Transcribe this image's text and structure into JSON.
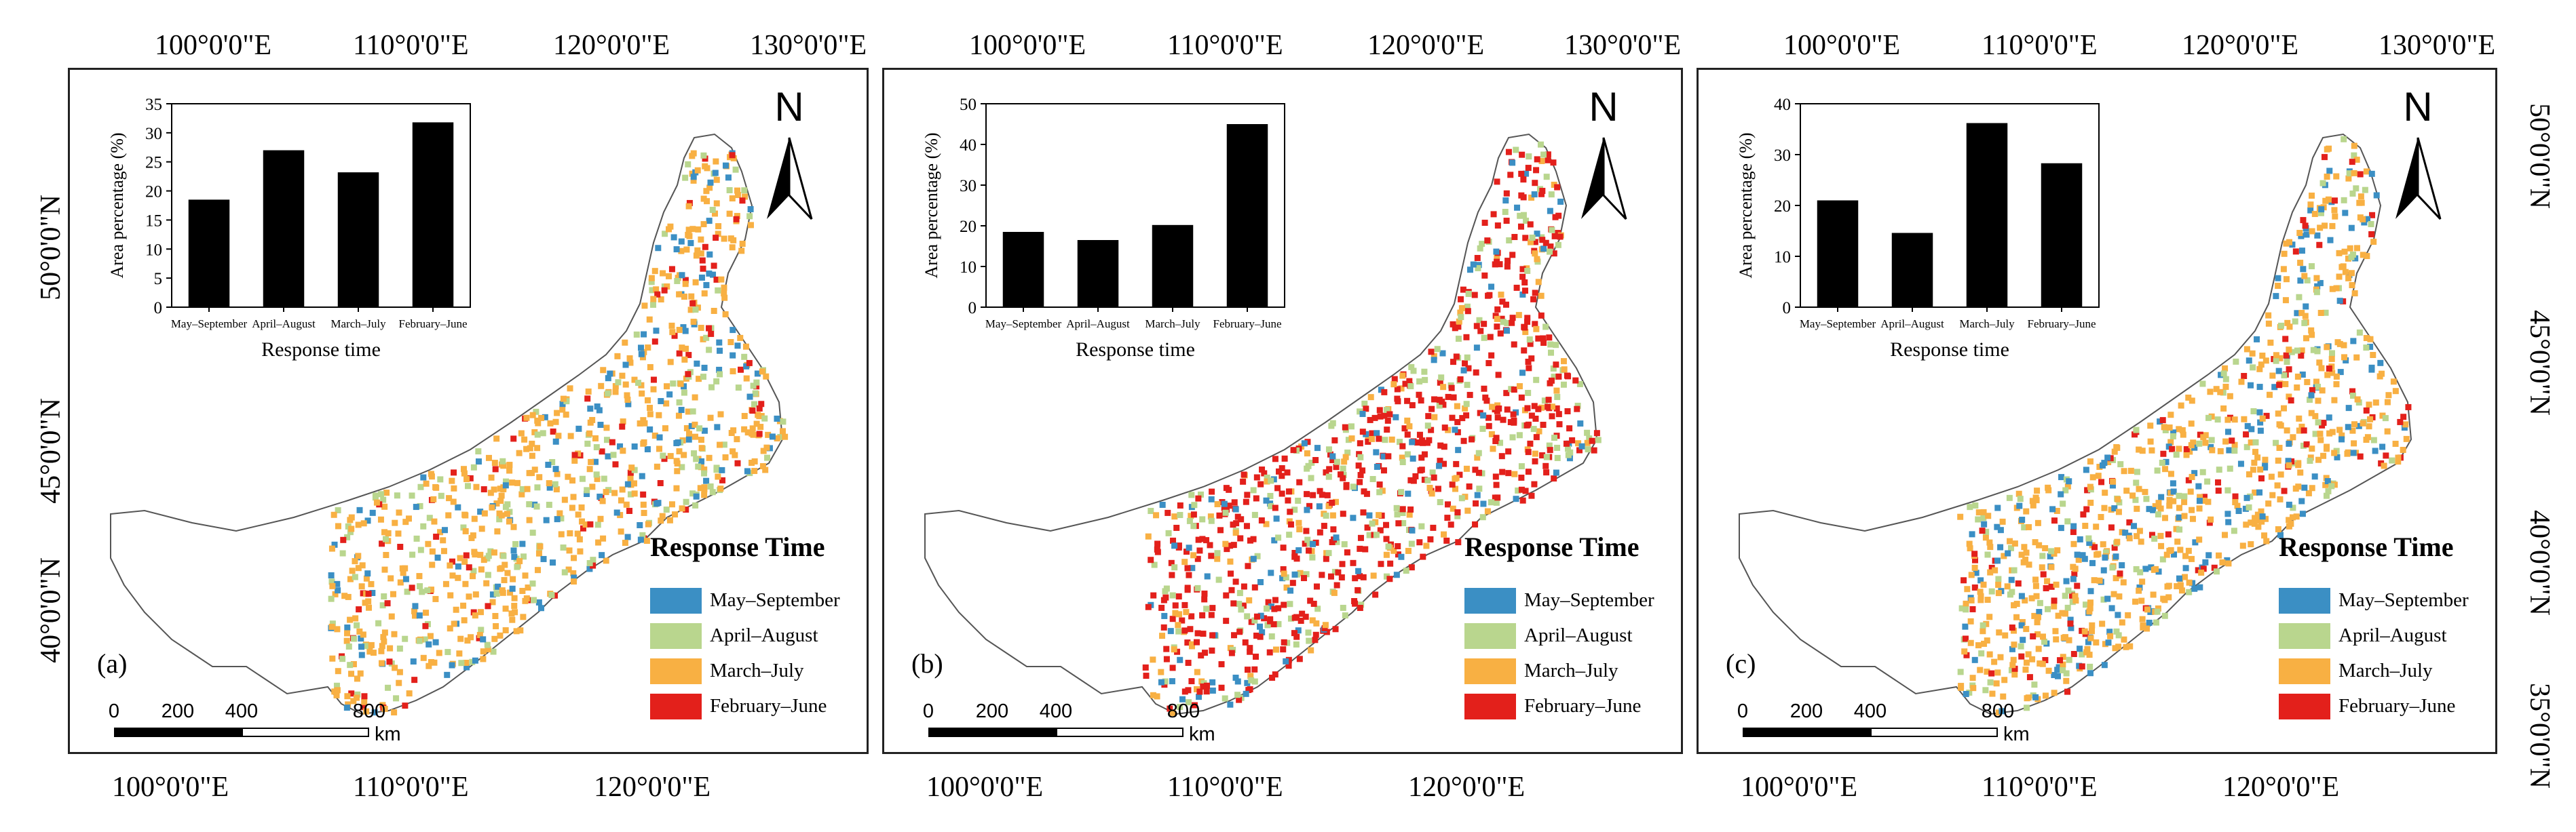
{
  "figure": {
    "top_lon_labels": [
      "100°0'0\"E",
      "110°0'0\"E",
      "120°0'0\"E",
      "130°0'0\"E"
    ],
    "bottom_lon_labels": [
      "100°0'0\"E",
      "110°0'0\"E",
      "120°0'0\"E"
    ],
    "left_lat_labels": [
      "50°0'0\"N",
      "45°0'0\"N",
      "40°0'0\"N"
    ],
    "right_lat_labels": [
      "50°0'0\"N",
      "45°0'0\"N",
      "40°0'0\"N",
      "35°0'0\"N"
    ],
    "north_letter": "N",
    "scale": {
      "ticks": [
        "0",
        "200",
        "400",
        "800"
      ],
      "tick_km": [
        0,
        200,
        400,
        800
      ],
      "unit": "km"
    },
    "legend": {
      "title": "Response Time",
      "items": [
        {
          "label": "May–September",
          "color": "#3b8fc4"
        },
        {
          "label": "April–August",
          "color": "#b9d68e"
        },
        {
          "label": "March–July",
          "color": "#f8b043"
        },
        {
          "label": "February–June",
          "color": "#e3201b"
        }
      ]
    },
    "chart_labels": {
      "ylabel": "Area percentage (%)",
      "xlabel": "Response time"
    }
  },
  "panels": [
    {
      "id": "a",
      "label": "(a)",
      "dominant": "mixed",
      "map_colors": [
        "#f8b043",
        "#b9d68e",
        "#3b8fc4",
        "#e3201b"
      ]
    },
    {
      "id": "b",
      "label": "(b)",
      "dominant": "February–June",
      "map_colors": [
        "#e3201b",
        "#b9d68e",
        "#f8b043",
        "#3b8fc4"
      ]
    },
    {
      "id": "c",
      "label": "(c)",
      "dominant": "March–July",
      "map_colors": [
        "#f8b043",
        "#3b8fc4",
        "#b9d68e",
        "#e3201b"
      ]
    }
  ],
  "chart_data": [
    {
      "type": "bar",
      "panel": "(a)",
      "categories": [
        "May–September",
        "April–August",
        "March–July",
        "February–June"
      ],
      "values": [
        18.5,
        27.0,
        23.2,
        31.8
      ],
      "xlabel": "Response time",
      "ylabel": "Area percentage (%)",
      "ylim": [
        0,
        35
      ],
      "yticks": [
        0,
        5,
        10,
        15,
        20,
        25,
        30,
        35
      ],
      "grid": false
    },
    {
      "type": "bar",
      "panel": "(b)",
      "categories": [
        "May–September",
        "April–August",
        "March–July",
        "February–June"
      ],
      "values": [
        18.5,
        16.5,
        20.2,
        45.0
      ],
      "xlabel": "Response time",
      "ylabel": "Area percentage (%)",
      "ylim": [
        0,
        50
      ],
      "yticks": [
        0,
        10,
        20,
        30,
        40,
        50
      ],
      "grid": false
    },
    {
      "type": "bar",
      "panel": "(c)",
      "categories": [
        "May–September",
        "April–August",
        "March–July",
        "February–June"
      ],
      "values": [
        21.0,
        14.6,
        36.2,
        28.3
      ],
      "xlabel": "Response time",
      "ylabel": "Area percentage (%)",
      "ylim": [
        0,
        40
      ],
      "yticks": [
        0,
        10,
        20,
        30,
        40
      ],
      "grid": false
    }
  ]
}
